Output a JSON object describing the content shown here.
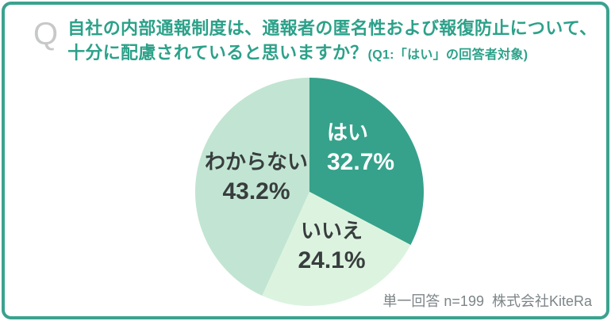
{
  "card": {
    "border_color": "#3AA28E",
    "background": "#FFFFFF"
  },
  "header": {
    "q_mark": "Q",
    "q_mark_color": "#C7C9C8",
    "text_color": "#2CA189",
    "line1": "自社の内部通報制度は、通報者の匿名性および報復防止について、",
    "line2": "十分に配慮されていると思いますか？",
    "line2_note": "(Q1:「はい」の回答者対象)"
  },
  "chart_data": {
    "type": "pie",
    "title": "",
    "categories": [
      "はい",
      "いいえ",
      "わからない"
    ],
    "values": [
      32.7,
      24.1,
      43.2
    ],
    "unit": "%",
    "start_angle_deg": 0,
    "direction": "clockwise",
    "colors": [
      "#36A28B",
      "#DCF4DF",
      "#C1E5D2"
    ],
    "slice_ids": [
      "yes",
      "no",
      "unknown"
    ],
    "labels": [
      {
        "name": "はい",
        "value_text": "32.7%",
        "text_color": "#FFFFFF"
      },
      {
        "name": "いいえ",
        "value_text": "24.1%",
        "text_color": "#383D3E"
      },
      {
        "name": "わからない",
        "value_text": "43.2%",
        "text_color": "#383D3E"
      }
    ],
    "legend": "none"
  },
  "footer": {
    "text": "単一回答 n=199  株式会社KiteRa",
    "color": "#7D8588"
  }
}
